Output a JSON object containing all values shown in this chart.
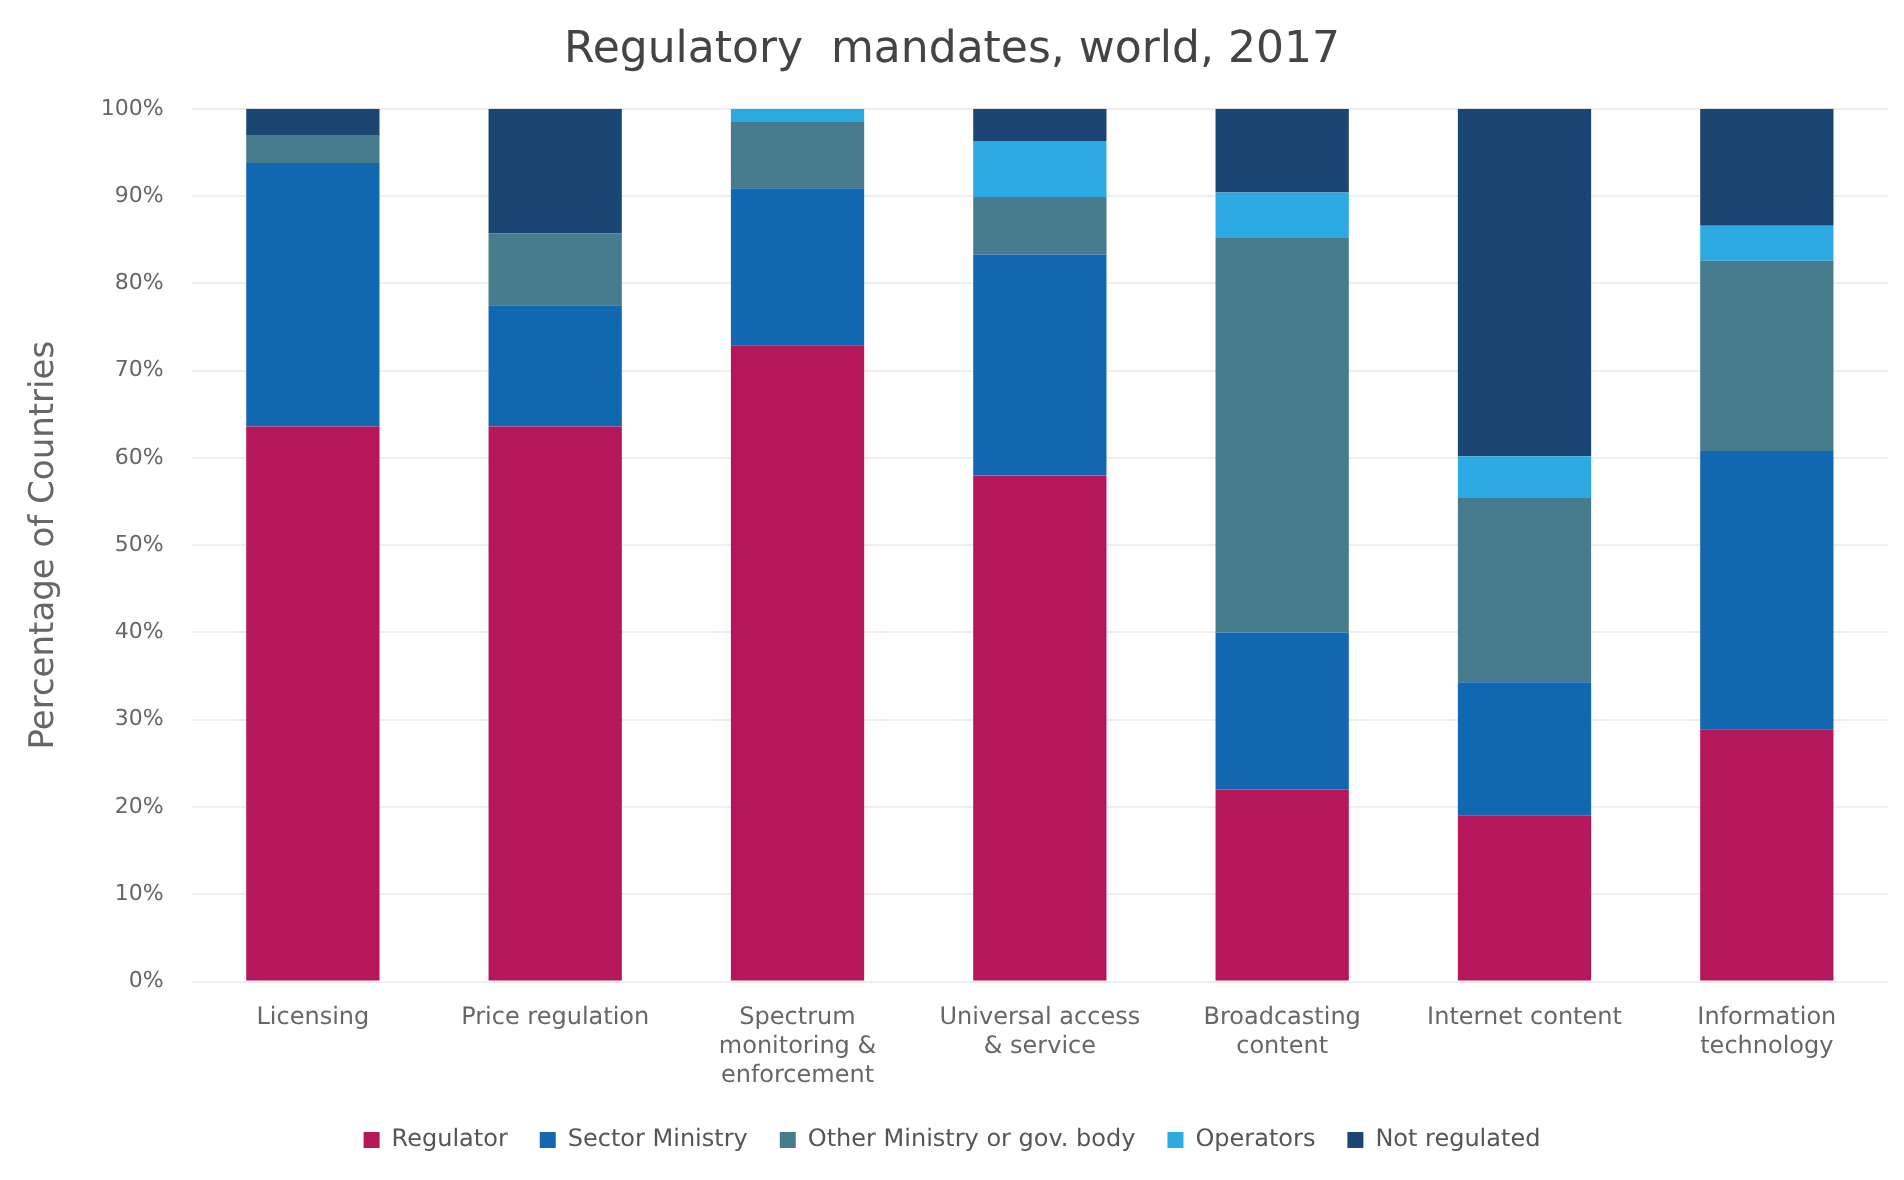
{
  "chart_data": {
    "type": "bar",
    "title": "Regulatory  mandates, world, 2017",
    "ylabel": "Percentage of Countries",
    "categories": [
      "Licensing",
      "Price regulation",
      "Spectrum monitoring & enforcement",
      "Universal access & service",
      "Broadcasting content",
      "Internet content",
      "Information technology"
    ],
    "series": [
      {
        "name": "Regulator",
        "color": "#b5175a",
        "values": [
          63.6,
          63.6,
          72.9,
          58,
          22,
          19,
          28.9
        ]
      },
      {
        "name": "Sector Ministry",
        "color": "#1268b0",
        "values": [
          30.2,
          13.9,
          18,
          25.3,
          18,
          15.3,
          31.9
        ]
      },
      {
        "name": "Other Ministry or gov. body",
        "color": "#477b8e",
        "values": [
          3.1,
          8.2,
          7.6,
          6.6,
          45.2,
          21.1,
          21.8
        ]
      },
      {
        "name": "Operators",
        "color": "#2eaae2",
        "values": [
          0,
          0,
          1.5,
          6.4,
          5.2,
          4.8,
          4
        ]
      },
      {
        "name": "Not regulated",
        "color": "#1b4673",
        "values": [
          3.1,
          14.3,
          0,
          3.7,
          9.6,
          39.8,
          13.4
        ]
      }
    ],
    "stacked": true,
    "ylim": [
      0,
      100
    ],
    "yticks": [
      {
        "value": 0,
        "label": "0%"
      },
      {
        "value": 10,
        "label": "10%"
      },
      {
        "value": 20,
        "label": "20%"
      },
      {
        "value": 30,
        "label": "30%"
      },
      {
        "value": 40,
        "label": "40%"
      },
      {
        "value": 50,
        "label": "50%"
      },
      {
        "value": 60,
        "label": "60%"
      },
      {
        "value": 70,
        "label": "70%"
      },
      {
        "value": 80,
        "label": "80%"
      },
      {
        "value": 90,
        "label": "90%"
      },
      {
        "value": 100,
        "label": "100%"
      }
    ],
    "grid": "y",
    "legend": "bottom"
  }
}
